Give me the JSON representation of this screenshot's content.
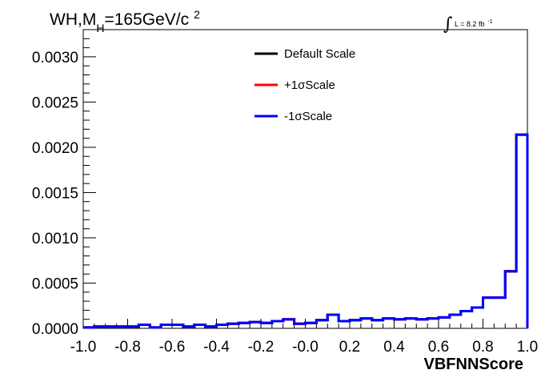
{
  "chart_data": {
    "type": "line",
    "title": "WH,M",
    "title_sub": "H",
    "title_tail": "=165GeV/c",
    "title_sup": "2",
    "lumi": {
      "integral_symbol": "∫",
      "text": "L = 8.2 fb",
      "sup": "-1"
    },
    "xlabel": "VBFNNScore",
    "ylabel": "",
    "xlim": [
      -1.0,
      1.0
    ],
    "ylim": [
      0.0,
      0.0033
    ],
    "x_ticks": [
      "-1.0",
      "-0.8",
      "-0.6",
      "-0.4",
      "-0.2",
      "-0.0",
      "0.2",
      "0.4",
      "0.6",
      "0.8",
      "1.0"
    ],
    "y_ticks": [
      "0.0000",
      "0.0005",
      "0.0010",
      "0.0015",
      "0.0020",
      "0.0025",
      "0.0030"
    ],
    "legend_position": "top-center",
    "bin_edges": [
      -1.0,
      -0.95,
      -0.9,
      -0.85,
      -0.8,
      -0.75,
      -0.7,
      -0.65,
      -0.6,
      -0.55,
      -0.5,
      -0.45,
      -0.4,
      -0.35,
      -0.3,
      -0.25,
      -0.2,
      -0.15,
      -0.1,
      -0.05,
      0.0,
      0.05,
      0.1,
      0.15,
      0.2,
      0.25,
      0.3,
      0.35,
      0.4,
      0.45,
      0.5,
      0.55,
      0.6,
      0.65,
      0.7,
      0.75,
      0.8,
      0.85,
      0.9,
      0.95,
      1.0
    ],
    "series": [
      {
        "name": "Default Scale",
        "color": "#000000",
        "values": [
          1e-05,
          2e-05,
          2e-05,
          2e-05,
          2e-05,
          4e-05,
          1e-05,
          4e-05,
          4e-05,
          2e-05,
          4e-05,
          2e-05,
          4e-05,
          5e-05,
          6e-05,
          7e-05,
          6e-05,
          8e-05,
          0.0001,
          5e-05,
          6e-05,
          9e-05,
          0.00015,
          8e-05,
          9e-05,
          0.00011,
          9e-05,
          0.00011,
          0.0001,
          0.00011,
          0.0001,
          0.00011,
          0.00012,
          0.00015,
          0.00019,
          0.00023,
          0.00034,
          0.00034,
          0.00063,
          0.00214
        ]
      },
      {
        "name": "+1σScale",
        "color": "#ff0000",
        "values": [
          1e-05,
          2e-05,
          2e-05,
          2e-05,
          2e-05,
          4e-05,
          1e-05,
          4e-05,
          4e-05,
          2e-05,
          4e-05,
          2e-05,
          4e-05,
          5e-05,
          6e-05,
          7e-05,
          6e-05,
          8e-05,
          0.0001,
          5e-05,
          6e-05,
          9e-05,
          0.00015,
          8e-05,
          9e-05,
          0.00011,
          9e-05,
          0.00011,
          0.0001,
          0.00011,
          0.0001,
          0.00011,
          0.00012,
          0.00015,
          0.00019,
          0.00023,
          0.00034,
          0.00034,
          0.00063,
          0.00214
        ]
      },
      {
        "name": "-1σScale",
        "color": "#0000ff",
        "values": [
          1e-05,
          2e-05,
          2e-05,
          2e-05,
          2e-05,
          4e-05,
          1e-05,
          4e-05,
          4e-05,
          2e-05,
          4e-05,
          2e-05,
          4e-05,
          5e-05,
          6e-05,
          7e-05,
          6e-05,
          8e-05,
          0.0001,
          5e-05,
          6e-05,
          9e-05,
          0.00015,
          8e-05,
          9e-05,
          0.00011,
          9e-05,
          0.00011,
          0.0001,
          0.00011,
          0.0001,
          0.00011,
          0.00012,
          0.00015,
          0.00019,
          0.00023,
          0.00034,
          0.00034,
          0.00063,
          0.00214
        ]
      }
    ]
  }
}
